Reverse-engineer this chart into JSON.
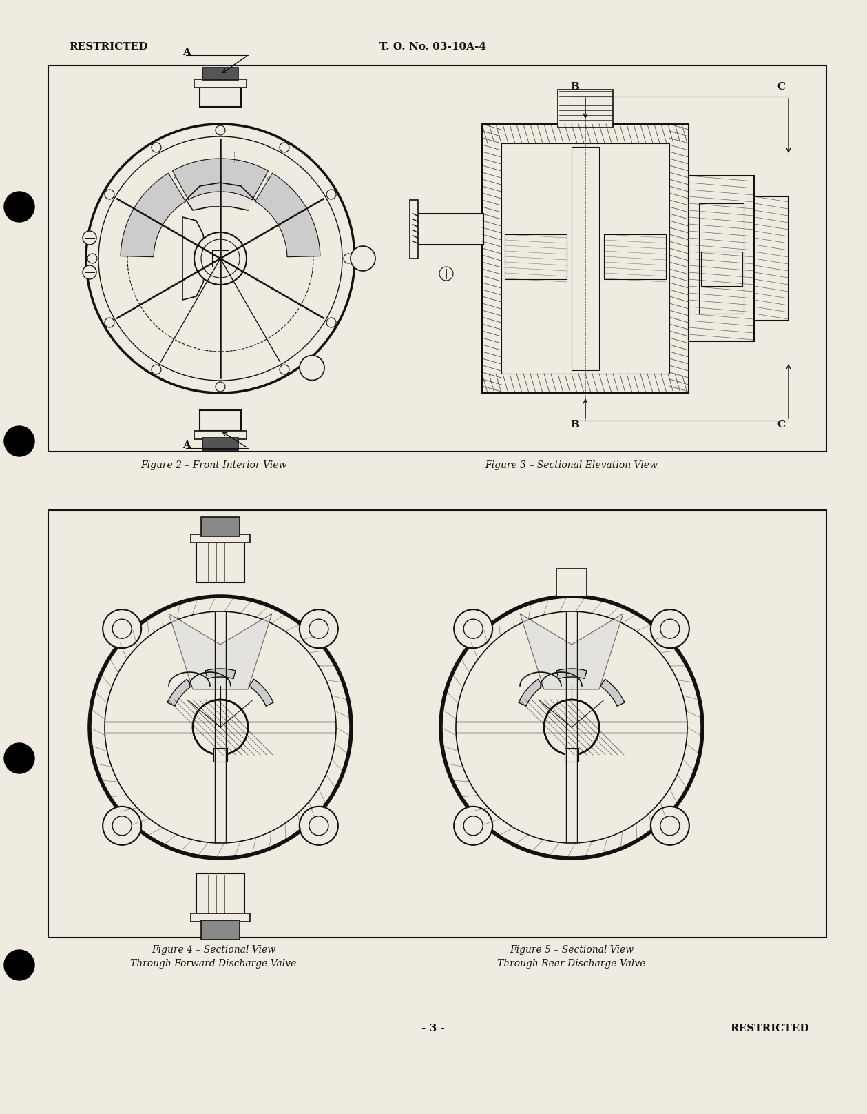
{
  "bg_color": "#f0ebe0",
  "page_bg": "#f0ebe0",
  "tc": "#111111",
  "header_left": "RESTRICTED",
  "header_center": "T. O. No. 03-10A-4",
  "footer_center": "- 3 -",
  "footer_right": "RESTRICTED",
  "fig2_caption": "Figure 2 – Front Interior View",
  "fig3_caption": "Figure 3 – Sectional Elevation View",
  "fig4_cap1": "Figure 4 – Sectional View",
  "fig4_cap2": "Through Forward Discharge Valve",
  "fig5_cap1": "Figure 5 – Sectional View",
  "fig5_cap2": "Through Rear Discharge Valve",
  "label_A": "A",
  "label_B": "B",
  "label_C": "C"
}
